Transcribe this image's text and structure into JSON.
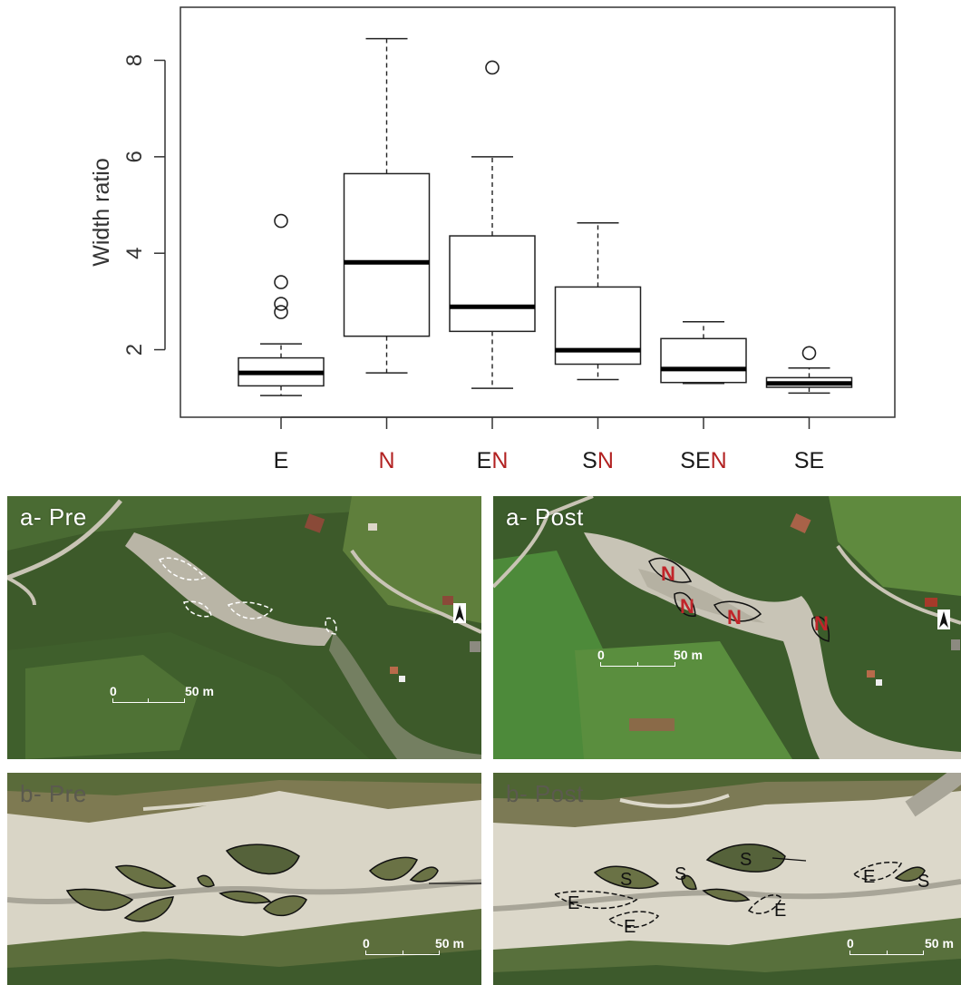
{
  "chart_data": {
    "type": "boxplot",
    "ylabel": "Width ratio",
    "yticks": [
      2,
      4,
      6,
      8
    ],
    "ylim": [
      0.6,
      9.1
    ],
    "categories": [
      {
        "parts": [
          {
            "text": "E",
            "color": "#1a1a1a"
          }
        ]
      },
      {
        "parts": [
          {
            "text": "N",
            "color": "#b22222"
          }
        ]
      },
      {
        "parts": [
          {
            "text": "E",
            "color": "#1a1a1a"
          },
          {
            "text": "N",
            "color": "#b22222"
          }
        ]
      },
      {
        "parts": [
          {
            "text": "S",
            "color": "#1a1a1a"
          },
          {
            "text": "N",
            "color": "#b22222"
          }
        ]
      },
      {
        "parts": [
          {
            "text": "SE",
            "color": "#1a1a1a"
          },
          {
            "text": "N",
            "color": "#b22222"
          }
        ]
      },
      {
        "parts": [
          {
            "text": "SE",
            "color": "#1a1a1a"
          }
        ]
      }
    ],
    "category_names": [
      "E",
      "N",
      "EN",
      "SN",
      "SEN",
      "SE"
    ],
    "boxes": [
      {
        "min": 1.05,
        "q1": 1.25,
        "median": 1.52,
        "q3": 1.83,
        "max": 2.12,
        "outliers": [
          2.78,
          2.95,
          3.4,
          4.67
        ]
      },
      {
        "min": 1.52,
        "q1": 2.28,
        "median": 3.81,
        "q3": 5.65,
        "max": 8.45,
        "outliers": []
      },
      {
        "min": 1.2,
        "q1": 2.38,
        "median": 2.89,
        "q3": 4.36,
        "max": 6.0,
        "outliers": [
          7.85
        ]
      },
      {
        "min": 1.38,
        "q1": 1.7,
        "median": 1.99,
        "q3": 3.3,
        "max": 4.63,
        "outliers": []
      },
      {
        "min": 1.3,
        "q1": 1.32,
        "median": 1.6,
        "q3": 2.23,
        "max": 2.58,
        "outliers": []
      },
      {
        "min": 1.1,
        "q1": 1.22,
        "median": 1.3,
        "q3": 1.42,
        "max": 1.62,
        "outliers": [
          1.93
        ]
      }
    ]
  },
  "panels": {
    "a_pre": {
      "label": "a- Pre",
      "scale_zero": "0",
      "scale_dist": "50 m"
    },
    "a_post": {
      "label": "a- Post",
      "scale_zero": "0",
      "scale_dist": "50 m",
      "markers": [
        "N",
        "N",
        "N",
        "N"
      ]
    },
    "b_pre": {
      "label": "b- Pre",
      "scale_zero": "0",
      "scale_dist": "50 m"
    },
    "b_post": {
      "label": "b- Post",
      "scale_zero": "0",
      "scale_dist": "50 m",
      "markers": [
        "S",
        "S",
        "S",
        "S",
        "E",
        "E",
        "E",
        "E"
      ]
    }
  },
  "colors": {
    "marker_N": "#c0252a",
    "marker_text": "#111111",
    "vegetation": "#3e5a2c",
    "gravel": "#d8d4c6"
  }
}
